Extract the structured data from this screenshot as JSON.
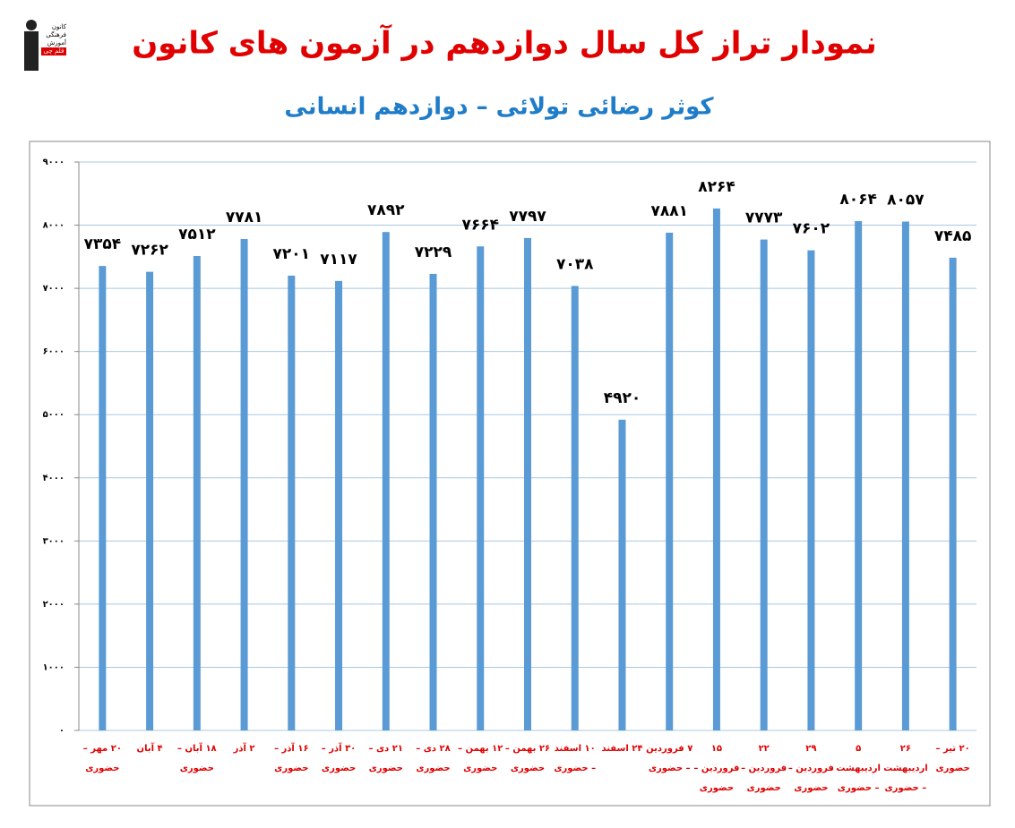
{
  "logo": [
    "کانون",
    "فرهنگی",
    "آموزش",
    "قلم چی"
  ],
  "chart_data": {
    "type": "bar",
    "title": "نمودار تراز کل سال دوازدهم در آزمون های کانون",
    "subtitle": "کوثر رضائی تولائی – دوازدهم انسانی",
    "categories": [
      "۲۰ مهر – حضوری",
      "۴ آبان",
      "۱۸ آبان – حضوری",
      "۲ آذر",
      "۱۶ آذر – حضوری",
      "۳۰ آذر – حضوری",
      "۲۱ دی – حضوری",
      "۲۸ دی – حضوری",
      "۱۲ بهمن – حضوری",
      "۲۶ بهمن – حضوری",
      "۱۰ اسفند – حضوری",
      "۲۴ اسفند",
      "۷ فروردین – حضوری",
      "۱۵ فروردین – حضوری",
      "۲۲ فروردین – حضوری",
      "۲۹ فروردین – حضوری",
      "۵ اردیبهشت – حضوری",
      "۲۶ اردیبهشت – حضوری",
      "۲۰ تیر – حضوری"
    ],
    "values": [
      7354,
      7262,
      7512,
      7781,
      7201,
      7117,
      7892,
      7229,
      7664,
      7797,
      7038,
      4920,
      7881,
      8264,
      7773,
      7602,
      8064,
      8057,
      7485
    ],
    "value_labels": [
      "۷۳۵۴",
      "۷۲۶۲",
      "۷۵۱۲",
      "۷۷۸۱",
      "۷۲۰۱",
      "۷۱۱۷",
      "۷۸۹۲",
      "۷۲۲۹",
      "۷۶۶۴",
      "۷۷۹۷",
      "۷۰۳۸",
      "۴۹۲۰",
      "۷۸۸۱",
      "۸۲۶۴",
      "۷۷۷۳",
      "۷۶۰۲",
      "۸۰۶۴",
      "۸۰۵۷",
      "۷۴۸۵"
    ],
    "color": "#5b9bd5",
    "ylim": [
      0,
      9000
    ],
    "yticks": [
      {
        "value": 0,
        "label": "۰"
      },
      {
        "value": 1000,
        "label": "۱۰۰۰"
      },
      {
        "value": 2000,
        "label": "۲۰۰۰"
      },
      {
        "value": 3000,
        "label": "۳۰۰۰"
      },
      {
        "value": 4000,
        "label": "۴۰۰۰"
      },
      {
        "value": 5000,
        "label": "۵۰۰۰"
      },
      {
        "value": 6000,
        "label": "۶۰۰۰"
      },
      {
        "value": 7000,
        "label": "۷۰۰۰"
      },
      {
        "value": 8000,
        "label": "۸۰۰۰"
      },
      {
        "value": 9000,
        "label": "۹۰۰۰"
      }
    ],
    "grid": true
  }
}
